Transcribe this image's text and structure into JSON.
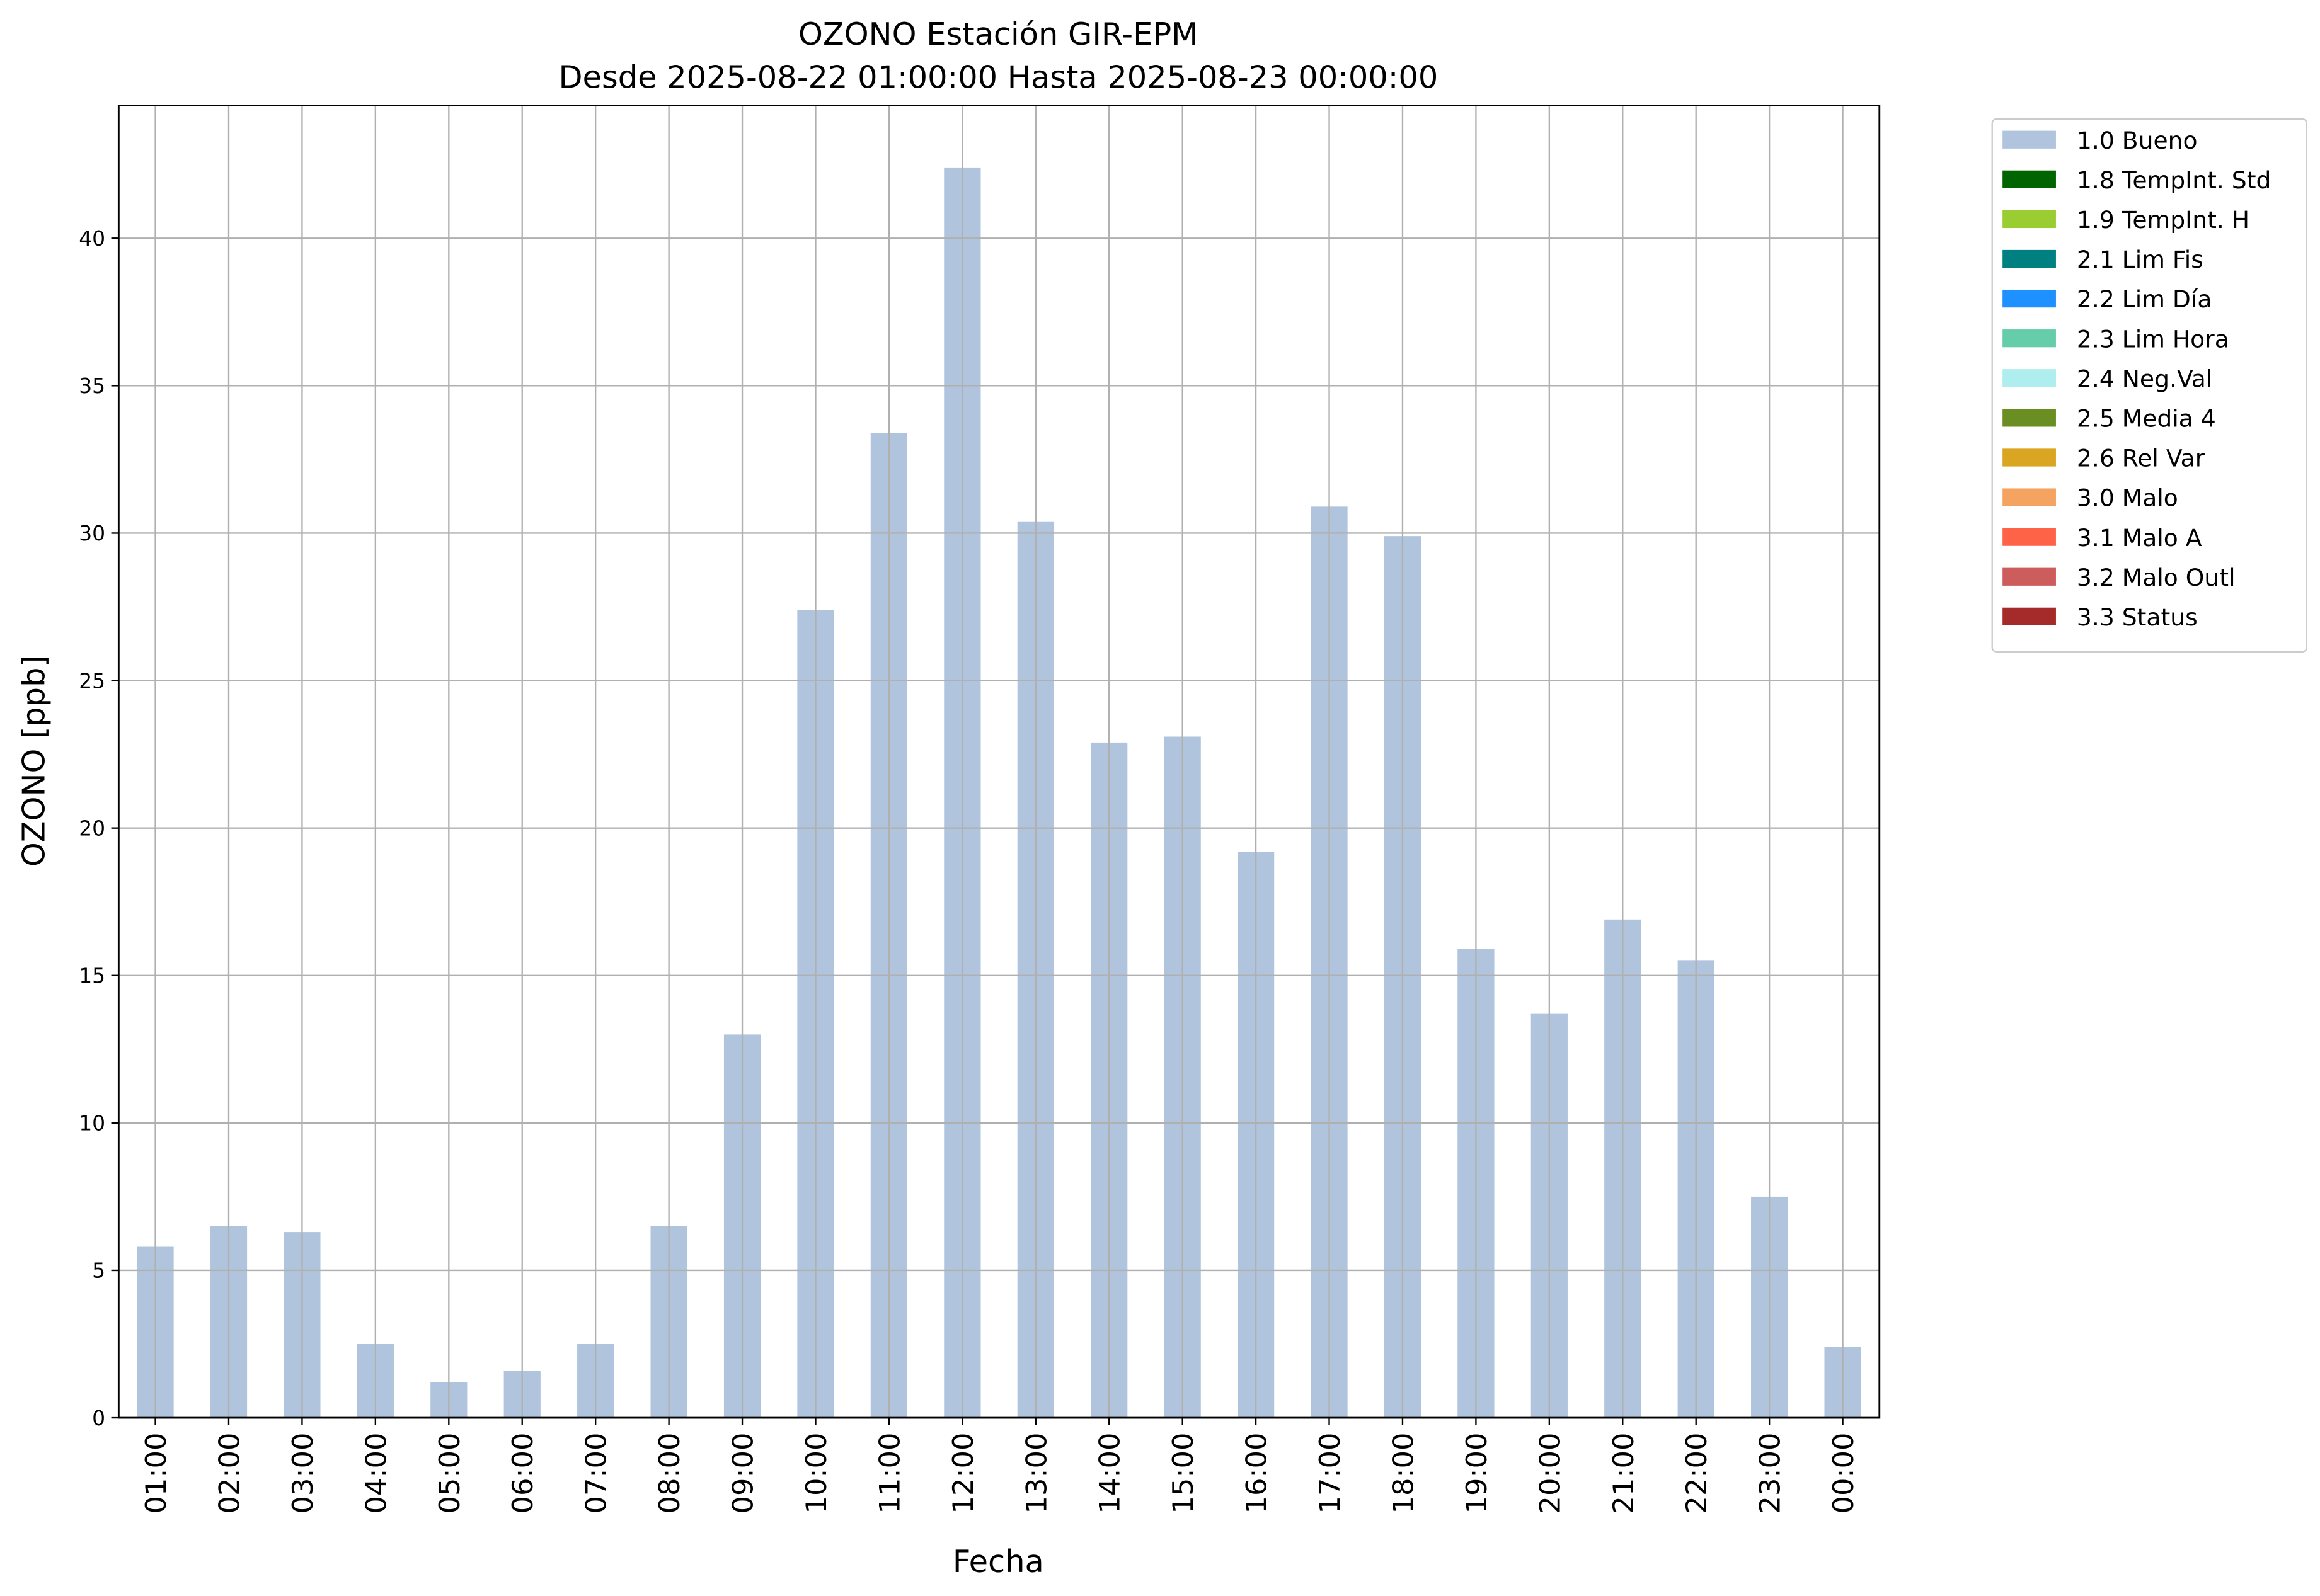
{
  "chart_data": {
    "type": "bar",
    "title": "OZONO Estación GIR-EPM",
    "subtitle": "Desde 2025-08-22 01:00:00 Hasta 2025-08-23 00:00:00",
    "x_label": "Fecha",
    "y_label": "OZONO [ppb]",
    "categories": [
      "01:00",
      "02:00",
      "03:00",
      "04:00",
      "05:00",
      "06:00",
      "07:00",
      "08:00",
      "09:00",
      "10:00",
      "11:00",
      "12:00",
      "13:00",
      "14:00",
      "15:00",
      "16:00",
      "17:00",
      "18:00",
      "19:00",
      "20:00",
      "21:00",
      "22:00",
      "23:00",
      "00:00"
    ],
    "series": [
      {
        "name": "1.0 Bueno",
        "color": "#b0c4de",
        "values": [
          5.8,
          6.5,
          6.3,
          2.5,
          1.2,
          1.6,
          2.5,
          6.5,
          13.0,
          27.4,
          33.4,
          42.4,
          30.4,
          22.9,
          23.1,
          19.2,
          30.9,
          29.9,
          15.9,
          13.7,
          16.9,
          15.5,
          7.5,
          2.4
        ]
      },
      {
        "name": "1.8 TempInt. Std",
        "color": "#006400"
      },
      {
        "name": "1.9 TempInt. H",
        "color": "#9acd32"
      },
      {
        "name": "2.1 Lim Fis",
        "color": "#008080"
      },
      {
        "name": "2.2 Lim Día",
        "color": "#1e90ff"
      },
      {
        "name": "2.3 Lim Hora",
        "color": "#66cdaa"
      },
      {
        "name": "2.4 Neg.Val",
        "color": "#afeeee"
      },
      {
        "name": "2.5 Media 4",
        "color": "#6b8e23"
      },
      {
        "name": "2.6 Rel Var",
        "color": "#daa520"
      },
      {
        "name": "3.0 Malo",
        "color": "#f4a460"
      },
      {
        "name": "3.1 Malo A",
        "color": "#ff6347"
      },
      {
        "name": "3.2 Malo Outl",
        "color": "#cd5c5c"
      },
      {
        "name": "3.3 Status",
        "color": "#a52a2a"
      }
    ],
    "ylim": [
      0,
      44.5
    ],
    "yticks": [
      0,
      5,
      10,
      15,
      20,
      25,
      30,
      35,
      40
    ],
    "grid": true,
    "legend": "outside-right"
  }
}
